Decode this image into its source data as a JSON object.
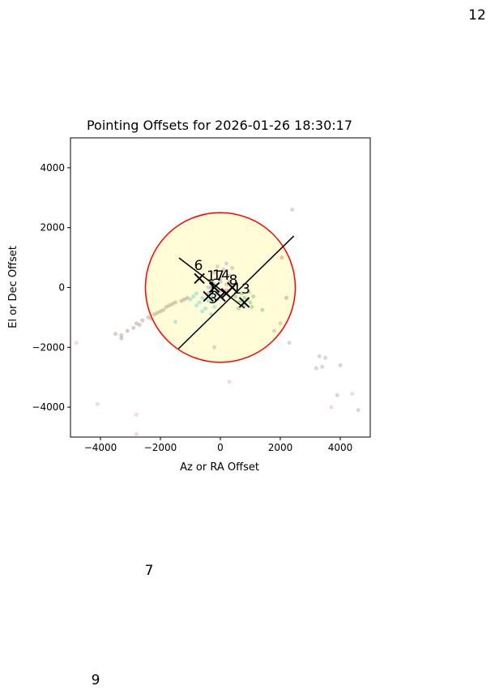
{
  "chart_data": {
    "type": "scatter",
    "title": "Pointing Offsets for 2026-01-26 18:30:17",
    "x_label": "Az or RA Offset",
    "y_label": "El or Dec Offset",
    "xlim": [
      -5000,
      5000
    ],
    "ylim": [
      -5000,
      5000
    ],
    "xticks": [
      {
        "value": -4000,
        "label": "−4000"
      },
      {
        "value": -2000,
        "label": "−2000"
      },
      0,
      2000,
      4000
    ],
    "yticks": [
      {
        "value": -4000,
        "label": "−4000"
      },
      {
        "value": -2000,
        "label": "−2000"
      },
      0,
      2000,
      4000
    ],
    "circle": {
      "x": 0,
      "y": 0,
      "r": 2500,
      "color": "#ff0000",
      "fill": "#fffcd8"
    },
    "lines": [
      {
        "color": "#000000",
        "x": [
          -1400,
          2450
        ],
        "y": [
          -2050,
          1720
        ]
      },
      {
        "color": "#000000",
        "x": [
          -1380,
          810
        ],
        "y": [
          990,
          -690
        ]
      }
    ],
    "series": [
      {
        "color": "#8c564b",
        "x": [
          -3500,
          -3300,
          -3100,
          -2900,
          -2800,
          -2600,
          -2400,
          -2200,
          -2100,
          -1900,
          -1800,
          -1600,
          -1500,
          -1300,
          -1200,
          -1100,
          -3300,
          -2700,
          -2300,
          -2000,
          -1700
        ],
        "y": [
          -1550,
          -1600,
          -1450,
          -1350,
          -1200,
          -1100,
          -1000,
          -900,
          -850,
          -750,
          -650,
          -550,
          -500,
          -450,
          -400,
          -350,
          -1700,
          -1250,
          -1050,
          -800,
          -600
        ]
      },
      {
        "color": "#17becf",
        "x": [
          -1000,
          -900,
          -800,
          -700,
          -600,
          -500,
          -400,
          -300,
          -200,
          -100,
          -1500,
          -800,
          -600,
          -300
        ],
        "y": [
          -400,
          -300,
          -600,
          -500,
          -350,
          -700,
          -450,
          -300,
          -650,
          -400,
          -1150,
          -200,
          -800,
          -900
        ]
      },
      {
        "color": "#2ca02c",
        "x": [
          500,
          600,
          700,
          800,
          900,
          1000,
          1100,
          600,
          800,
          950,
          700,
          1050,
          1400
        ],
        "y": [
          -300,
          -500,
          -200,
          -600,
          -400,
          -500,
          -300,
          -700,
          -350,
          -150,
          -450,
          -650,
          -750
        ]
      },
      {
        "color": "#9467bd",
        "x": [
          -300,
          -200,
          -100,
          0,
          100,
          200,
          300,
          400,
          -400,
          0,
          200,
          -100
        ],
        "y": [
          200,
          500,
          700,
          300,
          600,
          100,
          400,
          650,
          0,
          -100,
          800,
          -200
        ]
      },
      {
        "color": "#7f7f7f",
        "x": [
          2400,
          4000,
          3300,
          3500,
          3200,
          3400,
          3900,
          4600,
          2000,
          2300,
          1800,
          -200
        ],
        "y": [
          2600,
          -2600,
          -2300,
          -2350,
          -2700,
          -2650,
          -3600,
          -4100,
          -1200,
          -1850,
          -1450,
          -2000
        ]
      },
      {
        "color": "#e377c2",
        "x": [
          -4800,
          -4100,
          -2800,
          -2800,
          4400,
          3700,
          300
        ],
        "y": [
          -1850,
          -3900,
          -4250,
          -4900,
          -3550,
          -4000,
          -3150
        ]
      },
      {
        "color": "#d62728",
        "x": [
          300,
          400,
          200,
          2050,
          2200
        ],
        "y": [
          200,
          0,
          -100,
          1000,
          -350
        ]
      },
      {
        "color": "#1f77b4",
        "x": [
          -300,
          -200,
          -100,
          -400,
          0
        ],
        "y": [
          0,
          100,
          -100,
          -200,
          200
        ]
      }
    ],
    "markers": {
      "color": "#000000",
      "x": [
        -700,
        -200,
        0,
        -400,
        400,
        800,
        200
      ],
      "y": [
        300,
        0,
        -300,
        -300,
        0,
        -500,
        -200
      ]
    },
    "annotations": [
      "6",
      "17",
      "14",
      "8",
      "13",
      "1",
      "3",
      "12",
      "7",
      "9"
    ]
  }
}
